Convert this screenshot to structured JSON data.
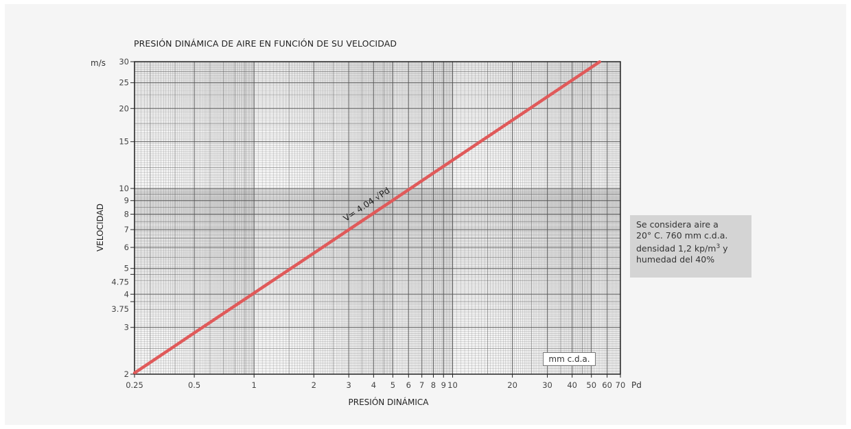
{
  "chart_data": {
    "type": "line",
    "title": "PRESIÓN DINÁMICA DE AIRE EN FUNCIÓN DE SU VELOCIDAD",
    "xlabel": "PRESIÓN DINÁMICA",
    "ylabel": "VELOCIDAD",
    "x_unit_label": "Pd",
    "y_unit_label": "m/s",
    "x_scale": "log",
    "y_scale": "log",
    "xlim": [
      0.25,
      70
    ],
    "ylim": [
      2,
      30
    ],
    "grid": true,
    "x_ticks": [
      {
        "v": 0.25,
        "label": "0.25"
      },
      {
        "v": 0.5,
        "label": "0.5"
      },
      {
        "v": 1,
        "label": "1"
      },
      {
        "v": 2,
        "label": "2"
      },
      {
        "v": 3,
        "label": "3"
      },
      {
        "v": 4,
        "label": "4"
      },
      {
        "v": 5,
        "label": "5"
      },
      {
        "v": 6,
        "label": "6"
      },
      {
        "v": 7,
        "label": "7"
      },
      {
        "v": 8,
        "label": "8"
      },
      {
        "v": 9,
        "label": "9"
      },
      {
        "v": 10,
        "label": "10"
      },
      {
        "v": 20,
        "label": "20"
      },
      {
        "v": 30,
        "label": "30"
      },
      {
        "v": 40,
        "label": "40"
      },
      {
        "v": 50,
        "label": "50"
      },
      {
        "v": 60,
        "label": "60"
      },
      {
        "v": 70,
        "label": "70"
      }
    ],
    "y_ticks": [
      {
        "v": 2,
        "label": "2"
      },
      {
        "v": 3,
        "label": "3"
      },
      {
        "v": 3.75,
        "label": "3.75"
      },
      {
        "v": 4,
        "label": "4"
      },
      {
        "v": 4.75,
        "label": "4.75"
      },
      {
        "v": 5,
        "label": "5"
      },
      {
        "v": 6,
        "label": "6"
      },
      {
        "v": 7,
        "label": "7"
      },
      {
        "v": 8,
        "label": "8"
      },
      {
        "v": 9,
        "label": "9"
      },
      {
        "v": 10,
        "label": "10"
      },
      {
        "v": 15,
        "label": "15"
      },
      {
        "v": 20,
        "label": "20"
      },
      {
        "v": 25,
        "label": "25"
      },
      {
        "v": 30,
        "label": "30"
      }
    ],
    "series": [
      {
        "label": "V= 4.04 √Pd",
        "color": "#e05a5a",
        "x": [
          0.25,
          0.5,
          1,
          2,
          5,
          10,
          20,
          30,
          40,
          50,
          55
        ],
        "y": [
          2.02,
          2.86,
          4.04,
          5.71,
          9.03,
          12.78,
          18.07,
          22.13,
          25.55,
          28.57,
          29.96
        ]
      }
    ],
    "x_unit_box": "mm c.d.a."
  },
  "note": {
    "lines": [
      "Se considera aire a",
      "20° C. 760 mm c.d.a.",
      "densidad 1,2 kp/m",
      "y",
      "humedad del 40%"
    ],
    "superscript": "3"
  },
  "colors": {
    "background": "#f5f5f5",
    "grid": "#555555",
    "curve": "#e05a5a",
    "note_box": "#d4d4d4"
  }
}
